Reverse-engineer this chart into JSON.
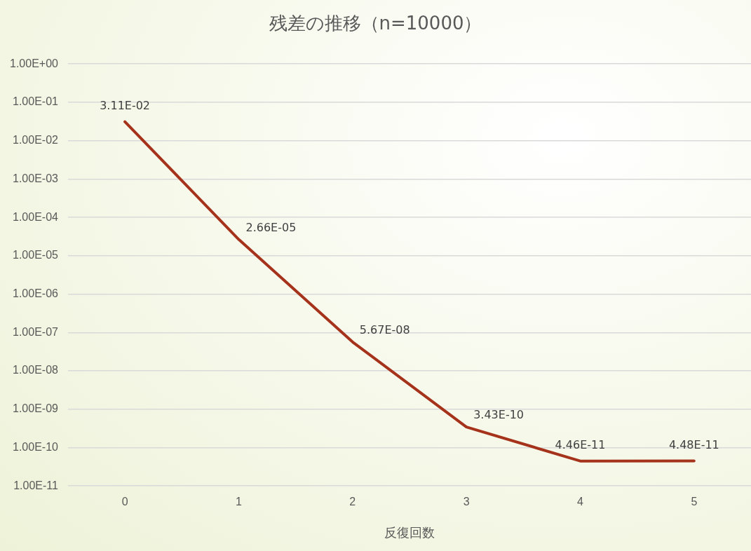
{
  "chart_data": {
    "type": "line",
    "title": "残差の推移（n=10000）",
    "xlabel": "反復回数",
    "categories": [
      "0",
      "1",
      "2",
      "3",
      "4",
      "5"
    ],
    "series": [
      {
        "color": "#a5321b",
        "values": [
          0.0311,
          2.66e-05,
          5.67e-08,
          3.43e-10,
          4.46e-11,
          4.48e-11
        ],
        "value_labels": [
          "3.11E-02",
          "2.66E-05",
          "5.67E-08",
          "3.43E-10",
          "4.46E-11",
          "4.48E-11"
        ]
      }
    ],
    "log": "y",
    "ylim": [
      1e-11,
      1
    ],
    "yticks": [
      {
        "value": 1,
        "label": "1.00E+00"
      },
      {
        "value": 0.1,
        "label": "1.00E-01"
      },
      {
        "value": 0.01,
        "label": "1.00E-02"
      },
      {
        "value": 0.001,
        "label": "1.00E-03"
      },
      {
        "value": 0.0001,
        "label": "1.00E-04"
      },
      {
        "value": 1e-05,
        "label": "1.00E-05"
      },
      {
        "value": 1e-06,
        "label": "1.00E-06"
      },
      {
        "value": 1e-07,
        "label": "1.00E-07"
      },
      {
        "value": 1e-08,
        "label": "1.00E-08"
      },
      {
        "value": 1e-09,
        "label": "1.00E-09"
      },
      {
        "value": 1e-10,
        "label": "1.00E-10"
      },
      {
        "value": 1e-11,
        "label": "1.00E-11"
      }
    ],
    "grid": "y",
    "legend": false,
    "marker": "none",
    "line_style": "solid"
  }
}
